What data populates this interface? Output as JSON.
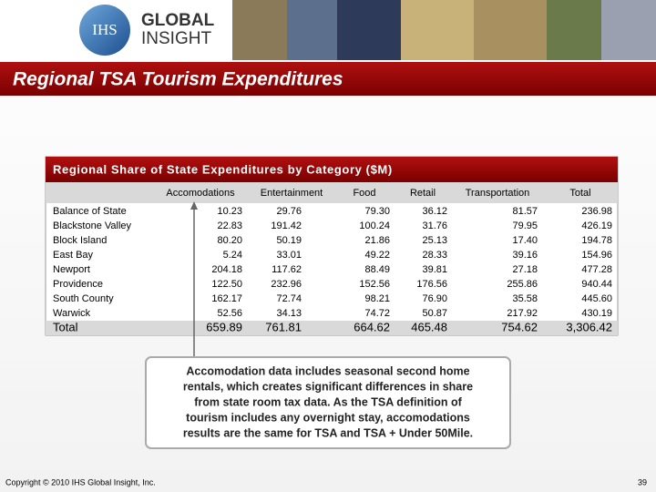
{
  "header": {
    "logo": {
      "mark": "IHS",
      "line1": "GLOBAL",
      "line2": "INSIGHT"
    },
    "title": "Regional TSA Tourism Expenditures"
  },
  "table": {
    "title": "Regional Share of State Expenditures by Category ($M)",
    "columns": [
      "Accomodations",
      "Entertainment",
      "Food",
      "Retail",
      "Transportation",
      "Total"
    ],
    "rows": [
      [
        "Balance of State",
        "10.23",
        "29.76",
        "79.30",
        "36.12",
        "81.57",
        "236.98"
      ],
      [
        "Blackstone Valley",
        "22.83",
        "191.42",
        "100.24",
        "31.76",
        "79.95",
        "426.19"
      ],
      [
        "Block Island",
        "80.20",
        "50.19",
        "21.86",
        "25.13",
        "17.40",
        "194.78"
      ],
      [
        "East Bay",
        "5.24",
        "33.01",
        "49.22",
        "28.33",
        "39.16",
        "154.96"
      ],
      [
        "Newport",
        "204.18",
        "117.62",
        "88.49",
        "39.81",
        "27.18",
        "477.28"
      ],
      [
        "Providence",
        "122.50",
        "232.96",
        "152.56",
        "176.56",
        "255.86",
        "940.44"
      ],
      [
        "South County",
        "162.17",
        "72.74",
        "98.21",
        "76.90",
        "35.58",
        "445.60"
      ],
      [
        "Warwick",
        "52.56",
        "34.13",
        "74.72",
        "50.87",
        "217.92",
        "430.19"
      ]
    ],
    "total": [
      "Total",
      "659.89",
      "761.81",
      "664.62",
      "465.48",
      "754.62",
      "3,306.42"
    ]
  },
  "callout": {
    "lines": [
      "Accomodation data includes seasonal second home",
      "rentals, which creates significant differences in share",
      "from state room tax data. As the TSA definition of",
      "tourism includes any overnight stay, accomodations",
      "results are the same for TSA and TSA + Under 50Mile."
    ]
  },
  "footer": {
    "copyright": "Copyright © 2010 IHS Global Insight, Inc.",
    "page": "39"
  }
}
